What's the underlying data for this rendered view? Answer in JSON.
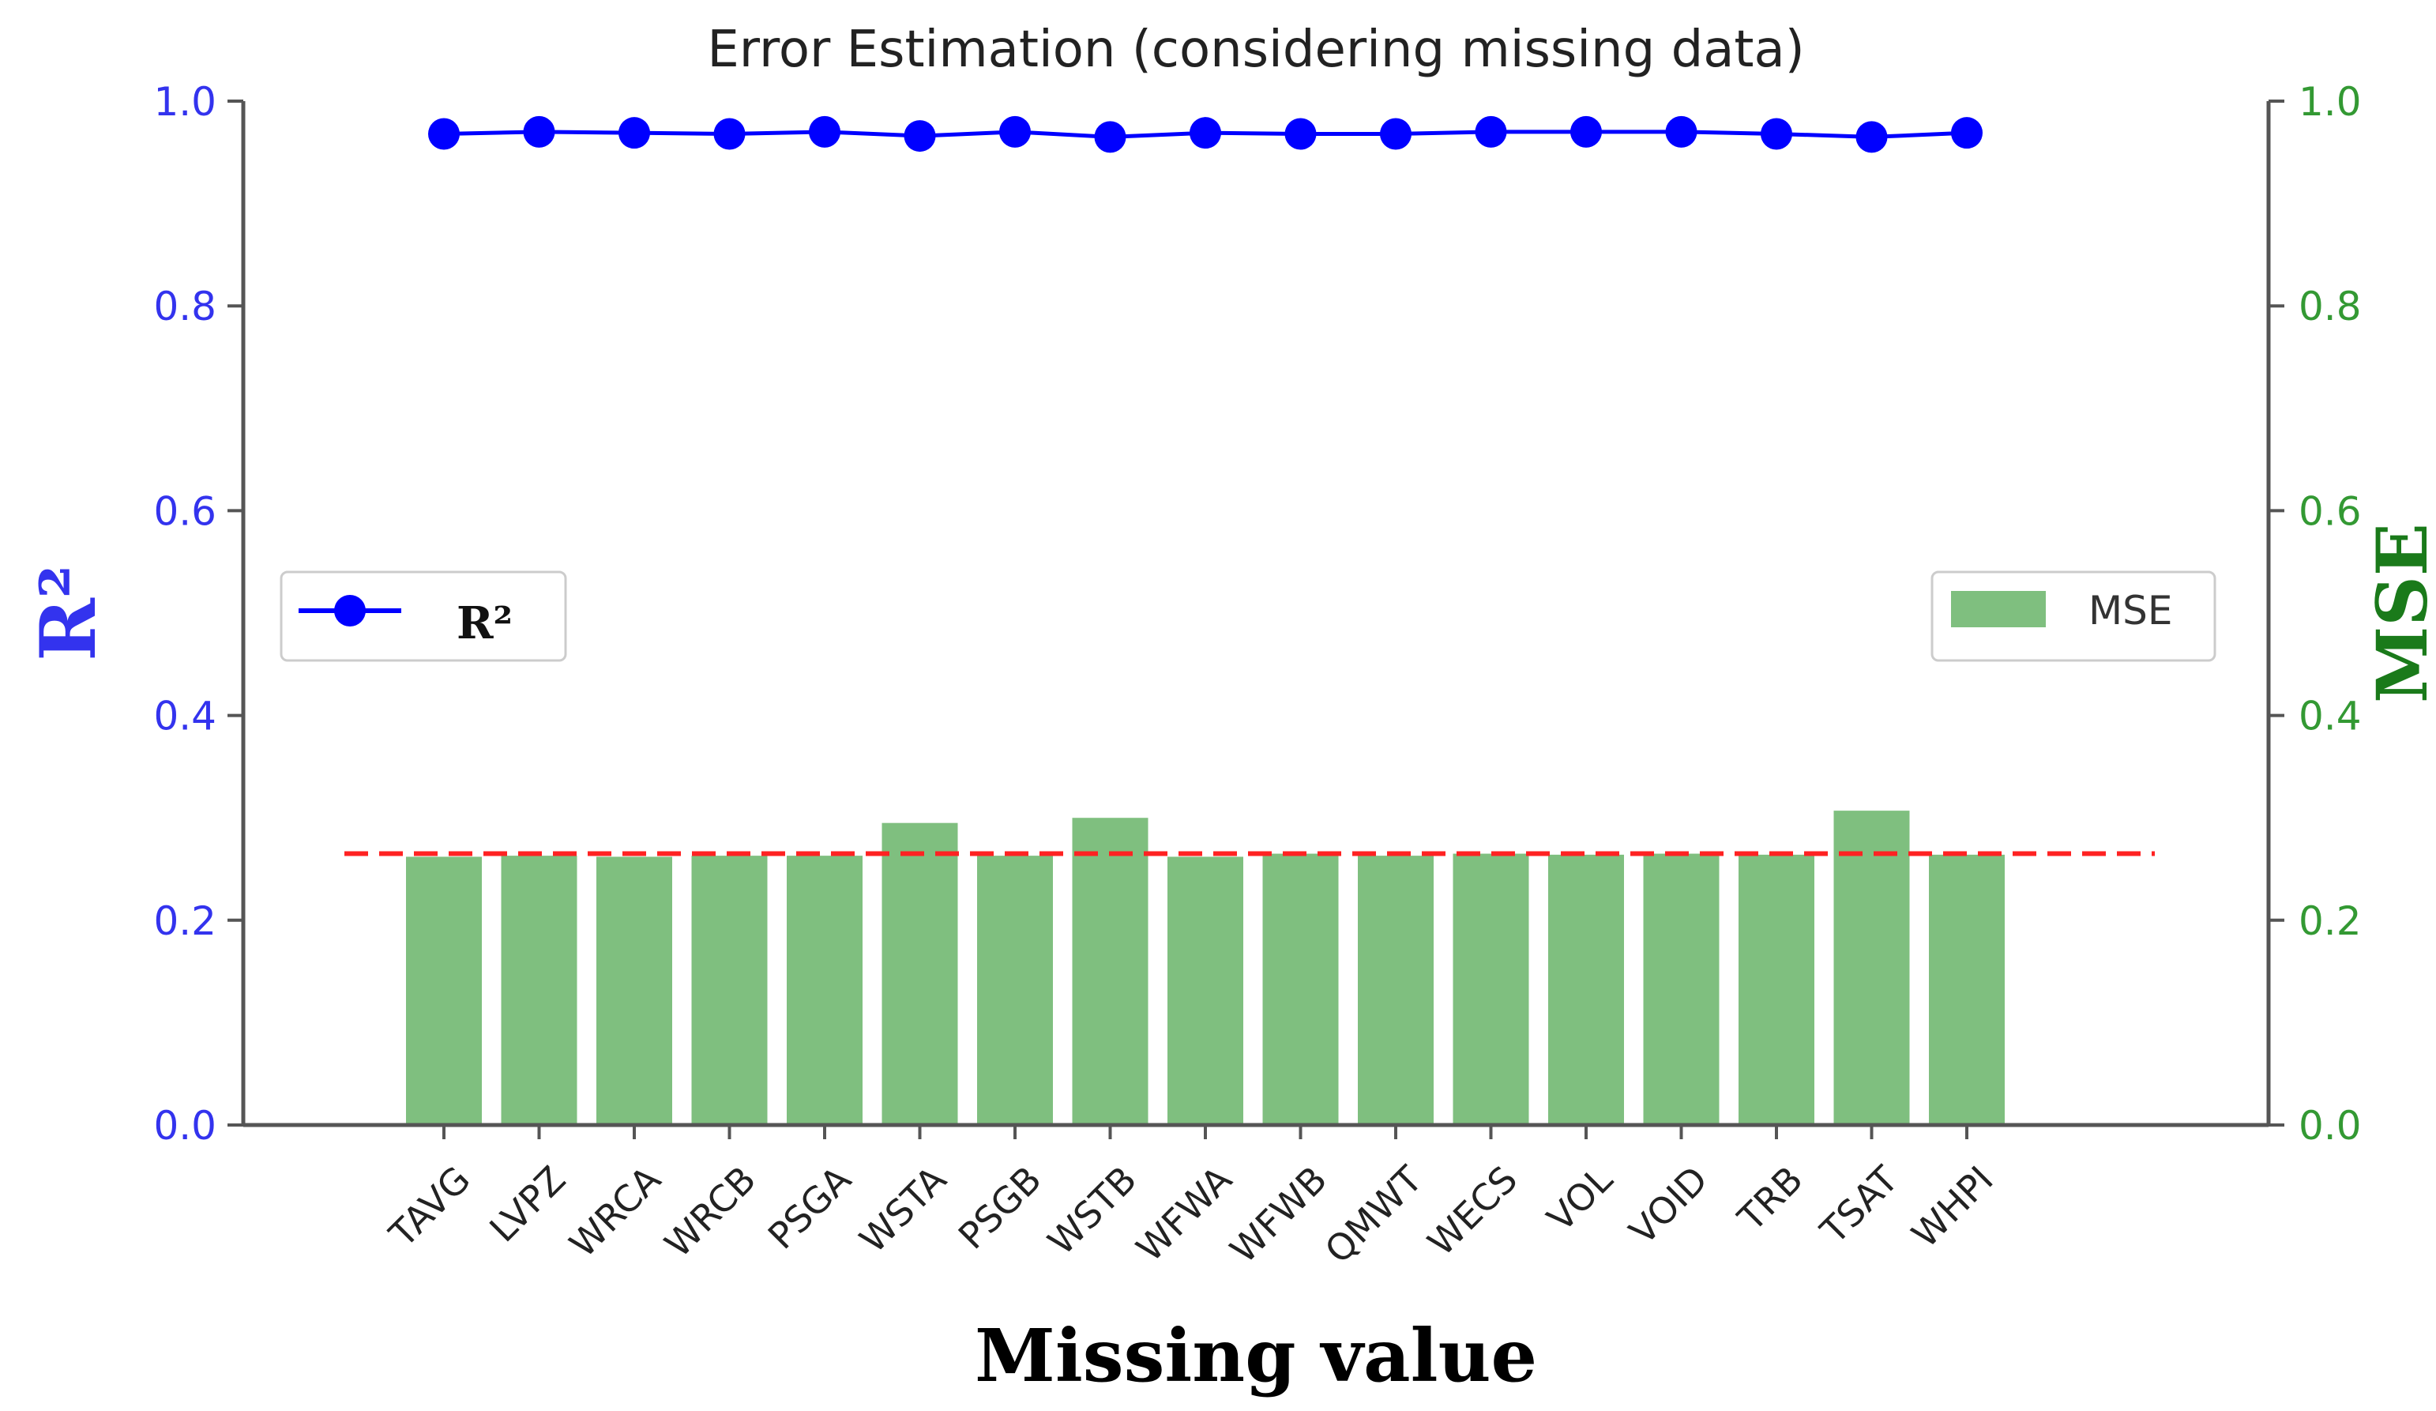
{
  "chart_data": {
    "type": "bar",
    "title": "Error Estimation (considering missing data)",
    "xlabel": "Missing value",
    "ylabel_left": "R²",
    "ylabel_right": "MSE",
    "categories": [
      "TAVG",
      "LVPZ",
      "WRCA",
      "WRCB",
      "PSGA",
      "WSTA",
      "PSGB",
      "WSTB",
      "WFWA",
      "WFWB",
      "QMWT",
      "WECS",
      "VOL",
      "VOID",
      "TRB",
      "TSAT",
      "WHPI"
    ],
    "ylim_left": [
      0,
      1.0
    ],
    "ylim_right": [
      0,
      1.0
    ],
    "yticks_left": [
      "0.0",
      "0.2",
      "0.4",
      "0.6",
      "0.8",
      "1.0"
    ],
    "yticks_right": [
      "0.0",
      "0.2",
      "0.4",
      "0.6",
      "0.8",
      "1.0"
    ],
    "series": [
      {
        "name": "R²",
        "kind": "line",
        "axis": "left",
        "color": "#0000ff",
        "values": [
          0.968,
          0.97,
          0.969,
          0.968,
          0.97,
          0.966,
          0.97,
          0.965,
          0.969,
          0.968,
          0.968,
          0.97,
          0.97,
          0.97,
          0.968,
          0.965,
          0.969
        ]
      },
      {
        "name": "MSE",
        "kind": "bar",
        "axis": "right",
        "color": "#7fbf7f",
        "values": [
          0.262,
          0.263,
          0.262,
          0.263,
          0.263,
          0.295,
          0.263,
          0.3,
          0.262,
          0.265,
          0.263,
          0.265,
          0.264,
          0.265,
          0.264,
          0.307,
          0.264
        ]
      }
    ],
    "reference_line": {
      "value": 0.265,
      "color": "#ff2222",
      "style": "dashed"
    },
    "legend_left": {
      "placement": "center-left",
      "label": "R²"
    },
    "legend_right": {
      "placement": "center-right",
      "label": "MSE"
    },
    "colors": {
      "left_axis": "#3333ee",
      "right_axis": "#339933",
      "right_label": "#1a7a1a",
      "spine": "#555555"
    },
    "grid": false
  }
}
